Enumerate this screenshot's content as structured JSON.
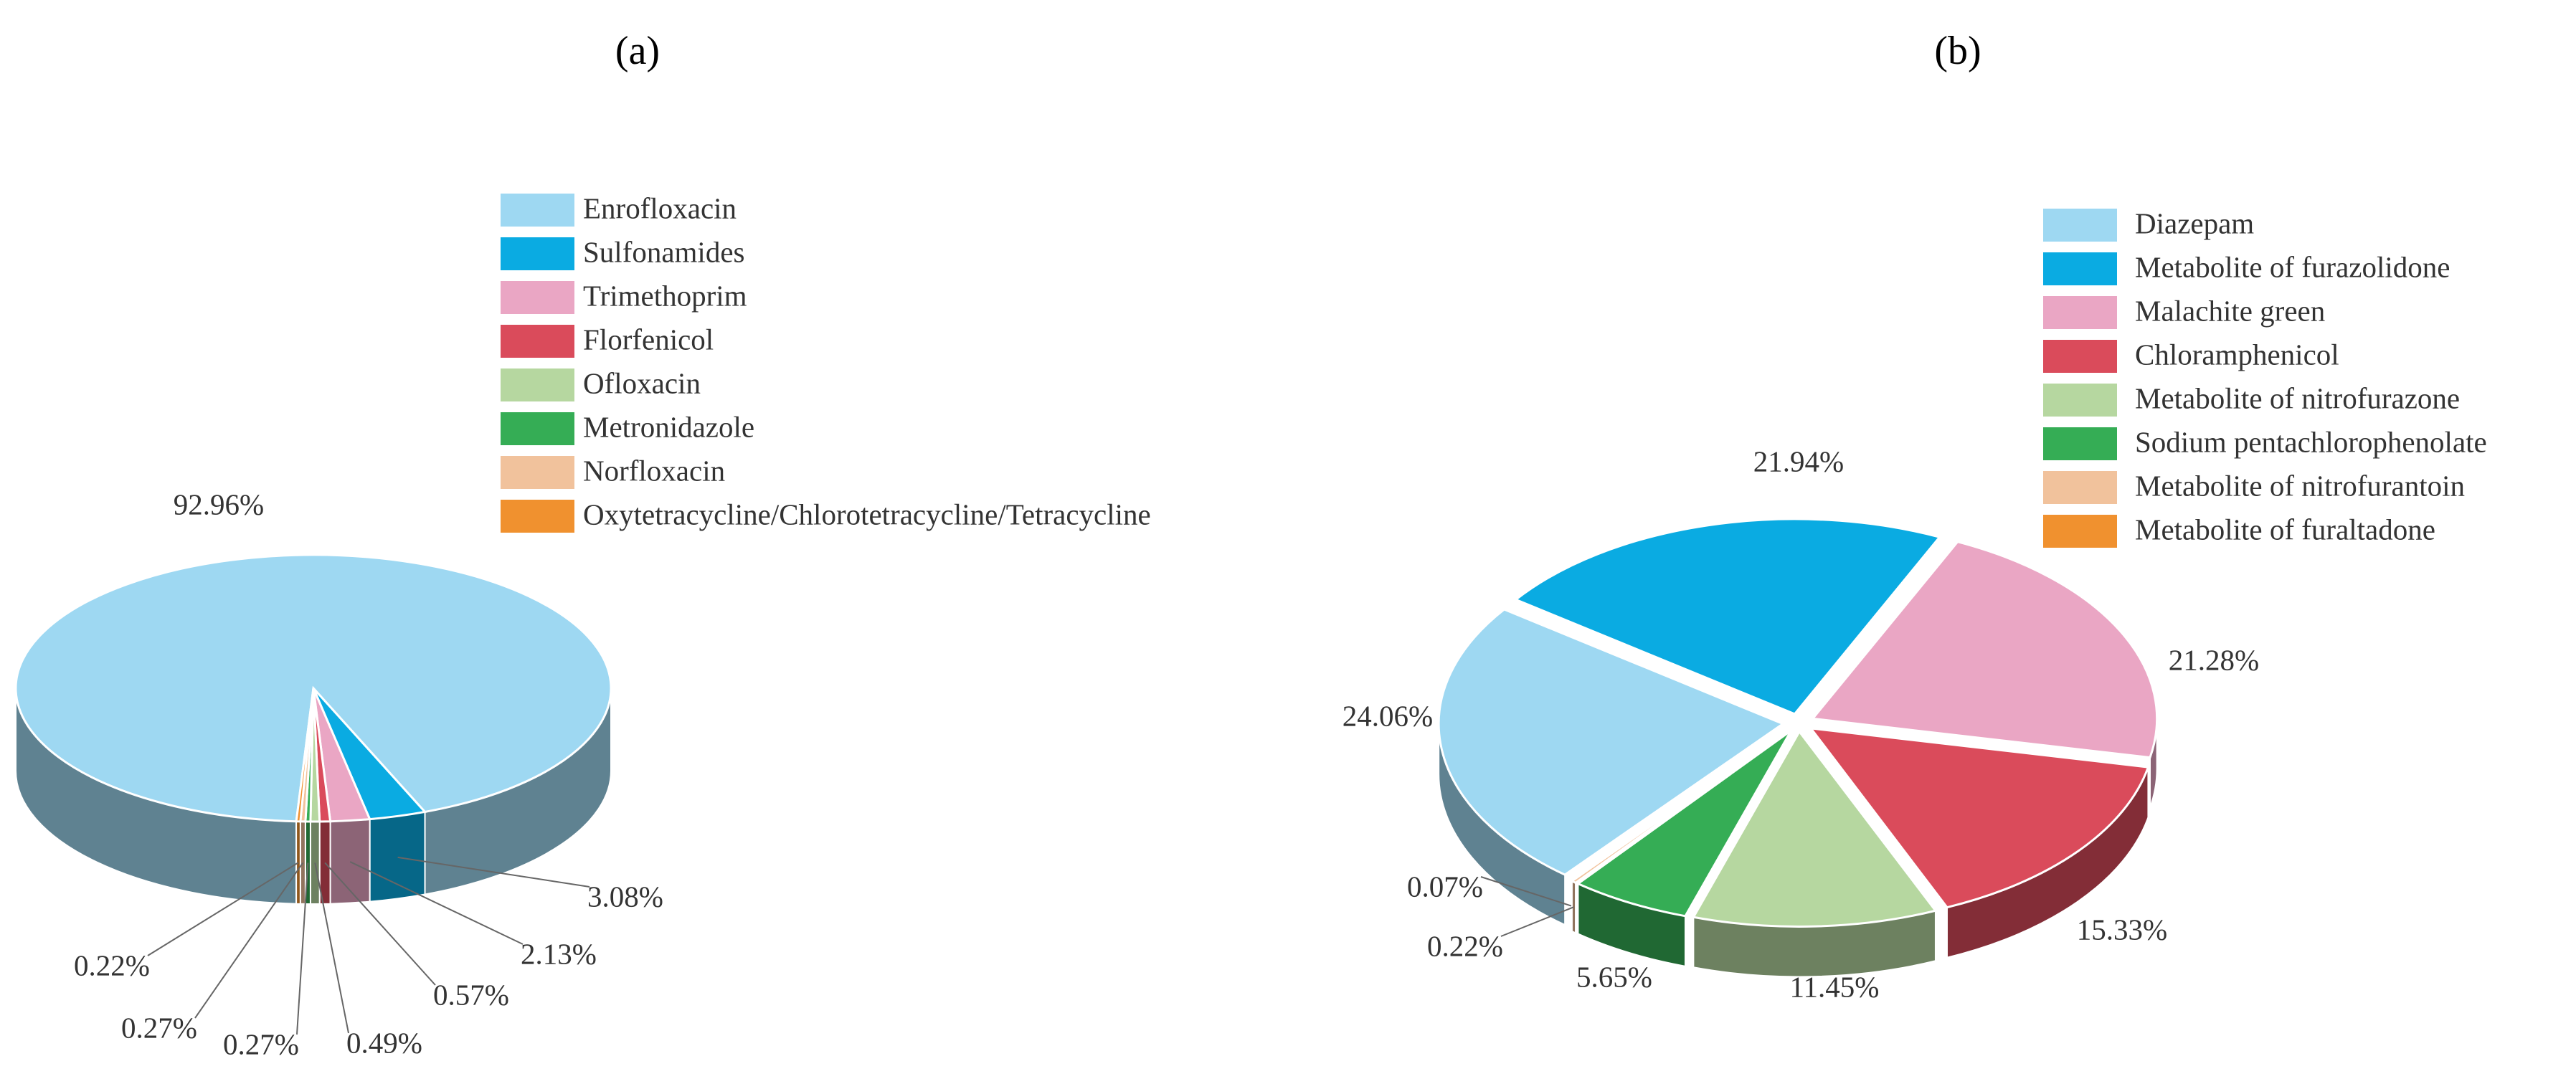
{
  "chart_data": [
    {
      "type": "pie3d",
      "title": "(a)",
      "categories": [
        "Enrofloxacin",
        "Sulfonamides",
        "Trimethoprim",
        "Florfenicol",
        "Ofloxacin",
        "Metronidazole",
        "Norfloxacin",
        "Oxytetracycline/Chlorotetracycline/Tetracycline"
      ],
      "values": [
        92.96,
        3.08,
        2.13,
        0.57,
        0.49,
        0.27,
        0.27,
        0.22
      ],
      "value_labels": [
        "92.96%",
        "3.08%",
        "2.13%",
        "0.57%",
        "0.49%",
        "0.27%",
        "0.27%",
        "0.22%"
      ],
      "colors": [
        "#9ed8f2",
        "#0aabe2",
        "#eaa6c4",
        "#da4b5b",
        "#b6d7a0",
        "#35ad55",
        "#f1c29c",
        "#f0912f"
      ]
    },
    {
      "type": "pie3d",
      "title": "(b)",
      "categories": [
        "Diazepam",
        "Metabolite of furazolidone",
        "Malachite green",
        "Chloramphenicol",
        "Metabolite of nitrofurazone",
        "Sodium pentachlorophenolate",
        "Metabolite of nitrofurantoin",
        "Metabolite of furaltadone"
      ],
      "values": [
        24.06,
        21.94,
        21.28,
        15.33,
        11.45,
        5.65,
        0.22,
        0.07
      ],
      "value_labels": [
        "24.06%",
        "21.94%",
        "21.28%",
        "15.33%",
        "11.45%",
        "5.65%",
        "0.22%",
        "0.07%"
      ],
      "colors": [
        "#9ed8f2",
        "#0aabe2",
        "#eaa6c4",
        "#da4b5b",
        "#b6d7a0",
        "#35ad55",
        "#f1c29c",
        "#f0912f"
      ]
    }
  ]
}
